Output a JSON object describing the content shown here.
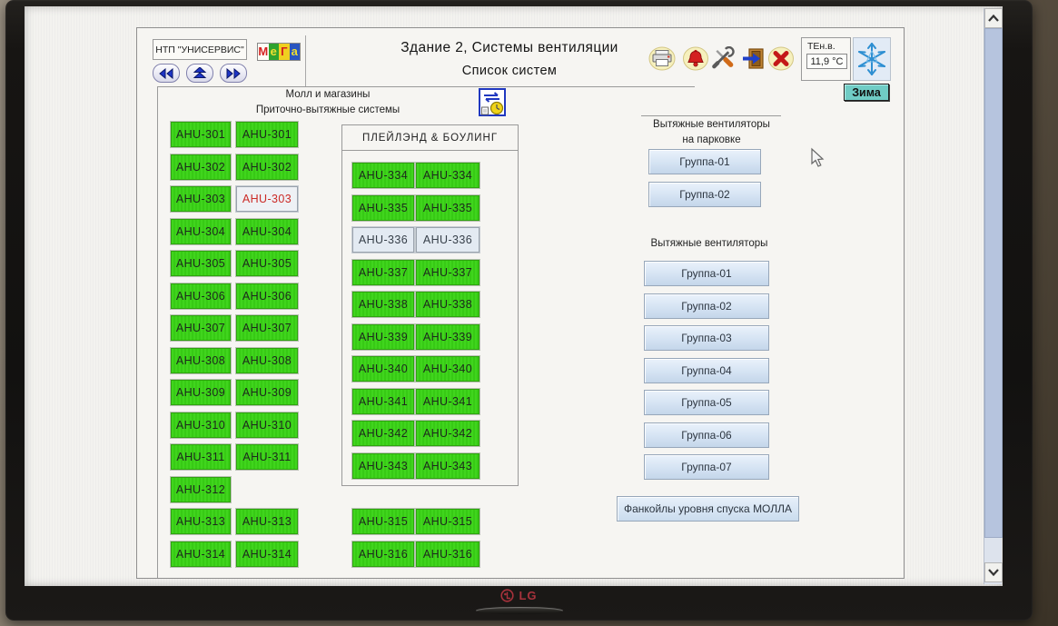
{
  "header": {
    "org": "НТП \"УНИСЕРВИС\"",
    "logo_letters": [
      "М",
      "е",
      "Г",
      "а"
    ],
    "title_line1": "Здание 2, Системы вентиляции",
    "title_line2": "Список систем",
    "temp_label": "ТЕн.в.",
    "temp_value": "11,9 °C",
    "season": "Зима"
  },
  "colors": {
    "ahu_on": "#3bd21a",
    "ahu_alarm_text": "#cb2a26",
    "group_button": "#d5e3f3",
    "season_bg": "#70ccc5"
  },
  "mall": {
    "title_line1": "Молл и магазины",
    "title_line2": "Приточно-вытяжные системы",
    "rows": [
      {
        "left": {
          "label": "AHU-301",
          "state": "on"
        },
        "right": {
          "label": "AHU-301",
          "state": "on"
        }
      },
      {
        "left": {
          "label": "AHU-302",
          "state": "on"
        },
        "right": {
          "label": "AHU-302",
          "state": "on"
        }
      },
      {
        "left": {
          "label": "AHU-303",
          "state": "on"
        },
        "right": {
          "label": "AHU-303",
          "state": "alarm"
        }
      },
      {
        "left": {
          "label": "AHU-304",
          "state": "on"
        },
        "right": {
          "label": "AHU-304",
          "state": "on"
        }
      },
      {
        "left": {
          "label": "AHU-305",
          "state": "on"
        },
        "right": {
          "label": "AHU-305",
          "state": "on"
        }
      },
      {
        "left": {
          "label": "AHU-306",
          "state": "on"
        },
        "right": {
          "label": "AHU-306",
          "state": "on"
        }
      },
      {
        "left": {
          "label": "AHU-307",
          "state": "on"
        },
        "right": {
          "label": "AHU-307",
          "state": "on"
        }
      },
      {
        "left": {
          "label": "AHU-308",
          "state": "on"
        },
        "right": {
          "label": "AHU-308",
          "state": "on"
        }
      },
      {
        "left": {
          "label": "AHU-309",
          "state": "on"
        },
        "right": {
          "label": "AHU-309",
          "state": "on"
        }
      },
      {
        "left": {
          "label": "AHU-310",
          "state": "on"
        },
        "right": {
          "label": "AHU-310",
          "state": "on"
        }
      },
      {
        "left": {
          "label": "AHU-311",
          "state": "on"
        },
        "right": {
          "label": "AHU-311",
          "state": "on"
        }
      },
      {
        "left": {
          "label": "AHU-312",
          "state": "on"
        },
        "right": null
      },
      {
        "left": {
          "label": "AHU-313",
          "state": "on"
        },
        "right": {
          "label": "AHU-313",
          "state": "on"
        }
      },
      {
        "left": {
          "label": "AHU-314",
          "state": "on"
        },
        "right": {
          "label": "AHU-314",
          "state": "on"
        }
      }
    ]
  },
  "playland": {
    "title": "ПЛЕЙЛЭНД  &  БОУЛИНГ",
    "rows": [
      {
        "left": {
          "label": "AHU-334",
          "state": "on"
        },
        "right": {
          "label": "AHU-334",
          "state": "on"
        }
      },
      {
        "left": {
          "label": "AHU-335",
          "state": "on"
        },
        "right": {
          "label": "AHU-335",
          "state": "on"
        }
      },
      {
        "left": {
          "label": "AHU-336",
          "state": "off"
        },
        "right": {
          "label": "AHU-336",
          "state": "off"
        }
      },
      {
        "left": {
          "label": "AHU-337",
          "state": "on"
        },
        "right": {
          "label": "AHU-337",
          "state": "on"
        }
      },
      {
        "left": {
          "label": "AHU-338",
          "state": "on"
        },
        "right": {
          "label": "AHU-338",
          "state": "on"
        }
      },
      {
        "left": {
          "label": "AHU-339",
          "state": "on"
        },
        "right": {
          "label": "AHU-339",
          "state": "on"
        }
      },
      {
        "left": {
          "label": "AHU-340",
          "state": "on"
        },
        "right": {
          "label": "AHU-340",
          "state": "on"
        }
      },
      {
        "left": {
          "label": "AHU-341",
          "state": "on"
        },
        "right": {
          "label": "AHU-341",
          "state": "on"
        }
      },
      {
        "left": {
          "label": "AHU-342",
          "state": "on"
        },
        "right": {
          "label": "AHU-342",
          "state": "on"
        }
      },
      {
        "left": {
          "label": "AHU-343",
          "state": "on"
        },
        "right": {
          "label": "AHU-343",
          "state": "on"
        }
      }
    ]
  },
  "extra": {
    "rows": [
      {
        "left": {
          "label": "AHU-315",
          "state": "on"
        },
        "right": {
          "label": "AHU-315",
          "state": "on"
        }
      },
      {
        "left": {
          "label": "AHU-316",
          "state": "on"
        },
        "right": {
          "label": "AHU-316",
          "state": "on"
        }
      }
    ]
  },
  "parking": {
    "title_line1": "Вытяжные вентиляторы",
    "title_line2": "на парковке",
    "buttons": [
      "Группа-01",
      "Группа-02"
    ]
  },
  "exhaust": {
    "title": "Вытяжные вентиляторы",
    "buttons": [
      "Группа-01",
      "Группа-02",
      "Группа-03",
      "Группа-04",
      "Группа-05",
      "Группа-06",
      "Группа-07"
    ]
  },
  "fancoil_button": "Фанкойлы уровня спуска МОЛЛА",
  "monitor": {
    "brand": "LG"
  }
}
